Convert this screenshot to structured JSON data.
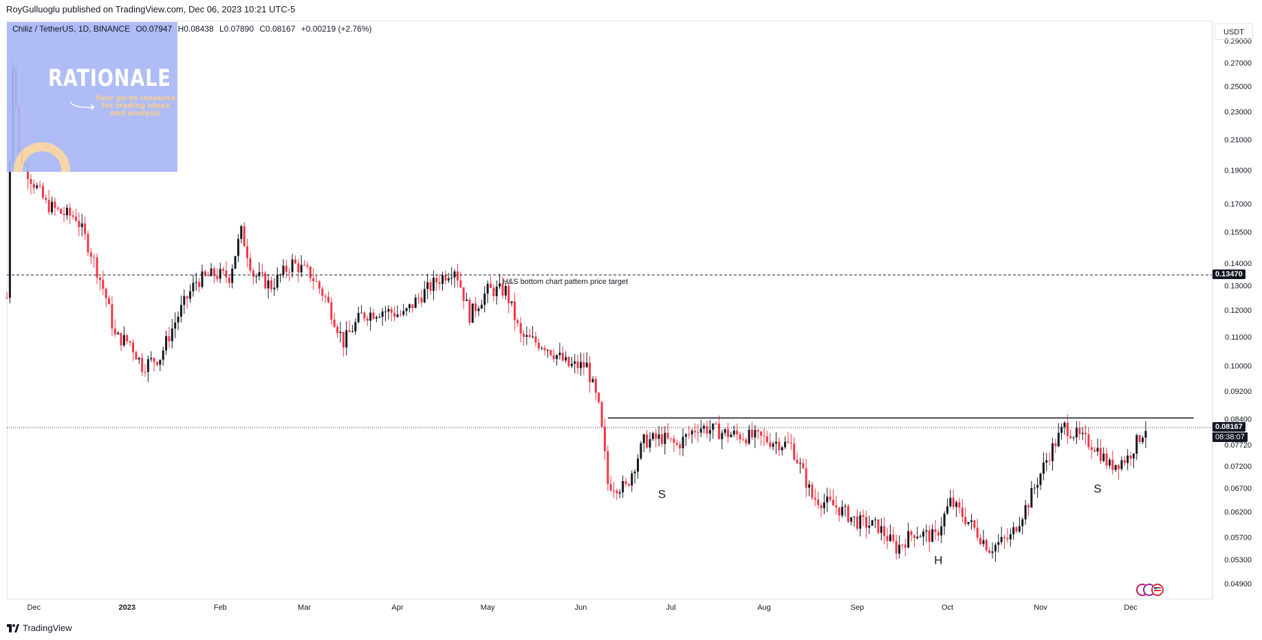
{
  "publish_line": "RoyGulluoglu published on TradingView.com, Dec 06, 2023 10:21 UTC-5",
  "symbol": {
    "name": "Chiliz / TetherUS, 1D, BINANCE",
    "open": "O0.07947",
    "high": "H0.08438",
    "low": "L0.07890",
    "close": "C0.08167",
    "change": "+0.00219 (+2.76%)"
  },
  "watermark": {
    "title": "RATIONALE",
    "subtitle": "Your go-to resource for trading ideas and analysis"
  },
  "currency": "USDT",
  "footer_brand": "TradingView",
  "colors": {
    "up": "#089981",
    "down": "#f23645",
    "candle_up_body": "#131722",
    "candle_down_body": "#f23645",
    "line": "#131722",
    "grid": "#e0e3eb"
  },
  "chart_data": {
    "type": "candlestick",
    "title": "Chiliz / TetherUS, 1D, BINANCE",
    "y_axis_ticks": [
      "0.29000",
      "0.27000",
      "0.25000",
      "0.23000",
      "0.21000",
      "0.19000",
      "0.17000",
      "0.15500",
      "0.14000",
      "0.13000",
      "0.12000",
      "0.11000",
      "0.10000",
      "0.09200",
      "0.08400",
      "0.07720",
      "0.07200",
      "0.06700",
      "0.06200",
      "0.05700",
      "0.05300",
      "0.04900"
    ],
    "y_scale": "log",
    "y_range": [
      0.0465,
      0.31
    ],
    "x_axis_ticks": [
      "Dec",
      "2023",
      "Feb",
      "Mar",
      "Apr",
      "May",
      "Jun",
      "Jul",
      "Aug",
      "Sep",
      "Oct",
      "Nov",
      "Dec"
    ],
    "x_range": [
      "2022-11-22",
      "2023-12-28"
    ],
    "last_price": "0.08167",
    "countdown": "08:38:07",
    "target_price": "0.13470",
    "target_label": "H&S bottom chart pattern price target",
    "neckline": 0.0843,
    "neckline_range": [
      "2023-06-10",
      "2023-12-22"
    ],
    "pattern_labels": [
      {
        "text": "S",
        "date": "2023-06-28",
        "price": 0.0648
      },
      {
        "text": "H",
        "date": "2023-09-28",
        "price": 0.0522
      },
      {
        "text": "S",
        "date": "2023-11-20",
        "price": 0.066
      }
    ],
    "price_path": [
      [
        "2022-11-22",
        0.125
      ],
      [
        "2022-11-24",
        0.27
      ],
      [
        "2022-11-26",
        0.2
      ],
      [
        "2022-11-30",
        0.185
      ],
      [
        "2022-12-05",
        0.17
      ],
      [
        "2022-12-10",
        0.165
      ],
      [
        "2022-12-15",
        0.163
      ],
      [
        "2022-12-20",
        0.145
      ],
      [
        "2022-12-25",
        0.125
      ],
      [
        "2022-12-28",
        0.11
      ],
      [
        "2023-01-02",
        0.108
      ],
      [
        "2023-01-06",
        0.1
      ],
      [
        "2023-01-12",
        0.103
      ],
      [
        "2023-01-18",
        0.118
      ],
      [
        "2023-01-24",
        0.132
      ],
      [
        "2023-01-30",
        0.135
      ],
      [
        "2023-02-04",
        0.134
      ],
      [
        "2023-02-08",
        0.155
      ],
      [
        "2023-02-12",
        0.135
      ],
      [
        "2023-02-18",
        0.13
      ],
      [
        "2023-02-25",
        0.14
      ],
      [
        "2023-03-03",
        0.135
      ],
      [
        "2023-03-08",
        0.125
      ],
      [
        "2023-03-14",
        0.108
      ],
      [
        "2023-03-20",
        0.118
      ],
      [
        "2023-03-27",
        0.12
      ],
      [
        "2023-04-03",
        0.118
      ],
      [
        "2023-04-08",
        0.125
      ],
      [
        "2023-04-14",
        0.132
      ],
      [
        "2023-04-20",
        0.138
      ],
      [
        "2023-04-25",
        0.118
      ],
      [
        "2023-05-01",
        0.128
      ],
      [
        "2023-05-07",
        0.128
      ],
      [
        "2023-05-12",
        0.11
      ],
      [
        "2023-05-20",
        0.107
      ],
      [
        "2023-05-28",
        0.1
      ],
      [
        "2023-06-03",
        0.1
      ],
      [
        "2023-06-07",
        0.087
      ],
      [
        "2023-06-10",
        0.068
      ],
      [
        "2023-06-16",
        0.067
      ],
      [
        "2023-06-22",
        0.078
      ],
      [
        "2023-06-28",
        0.079
      ],
      [
        "2023-07-03",
        0.077
      ],
      [
        "2023-07-10",
        0.082
      ],
      [
        "2023-07-20",
        0.08
      ],
      [
        "2023-07-30",
        0.079
      ],
      [
        "2023-08-10",
        0.077
      ],
      [
        "2023-08-17",
        0.065
      ],
      [
        "2023-08-25",
        0.063
      ],
      [
        "2023-09-01",
        0.06
      ],
      [
        "2023-09-08",
        0.059
      ],
      [
        "2023-09-14",
        0.055
      ],
      [
        "2023-09-20",
        0.058
      ],
      [
        "2023-09-27",
        0.057
      ],
      [
        "2023-10-02",
        0.064
      ],
      [
        "2023-10-08",
        0.06
      ],
      [
        "2023-10-15",
        0.055
      ],
      [
        "2023-10-22",
        0.057
      ],
      [
        "2023-10-28",
        0.064
      ],
      [
        "2023-11-04",
        0.075
      ],
      [
        "2023-11-09",
        0.082
      ],
      [
        "2023-11-14",
        0.079
      ],
      [
        "2023-11-19",
        0.077
      ],
      [
        "2023-11-24",
        0.072
      ],
      [
        "2023-11-30",
        0.074
      ],
      [
        "2023-12-06",
        0.0817
      ]
    ]
  }
}
